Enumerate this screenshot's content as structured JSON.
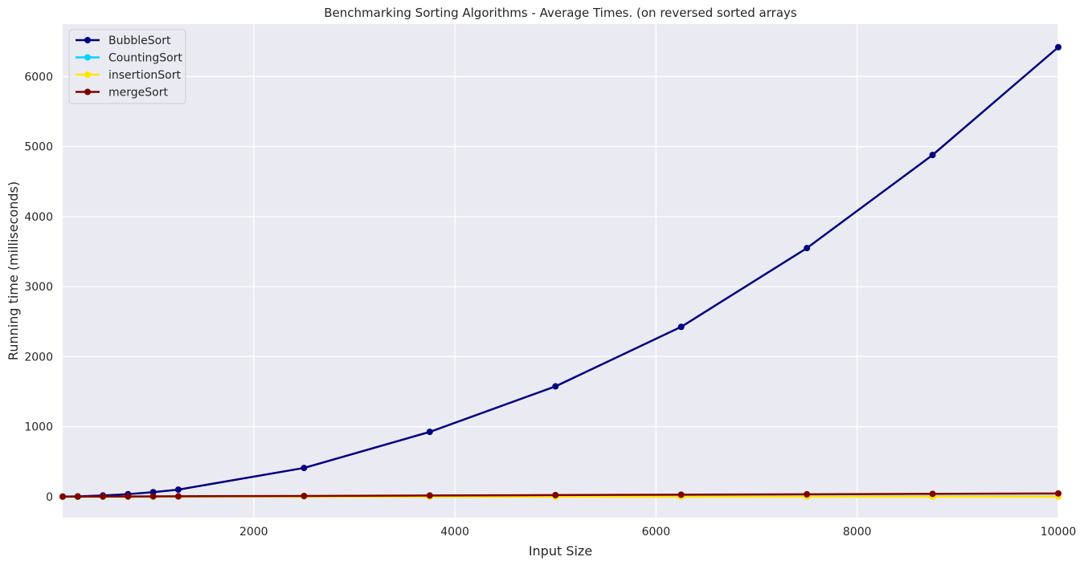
{
  "chart_data": {
    "type": "line",
    "title": "Benchmarking Sorting Algorithms - Average Times. (on reversed sorted arrays",
    "xlabel": "Input Size",
    "ylabel": "Running time (milliseconds)",
    "xlim": [
      100,
      10000
    ],
    "ylim": [
      -300,
      6750
    ],
    "xticks": [
      2000,
      4000,
      6000,
      8000,
      10000
    ],
    "yticks": [
      0,
      1000,
      2000,
      3000,
      4000,
      5000,
      6000
    ],
    "grid": true,
    "legend_position": "top-left",
    "x": [
      100,
      250,
      500,
      750,
      1000,
      1250,
      2500,
      3750,
      5000,
      6250,
      7500,
      8750,
      10000
    ],
    "series": [
      {
        "name": "BubbleSort",
        "color": "#000080",
        "values": [
          1,
          4,
          16,
          36,
          64,
          100,
          410,
          925,
          1575,
          2425,
          3550,
          4880,
          6420
        ]
      },
      {
        "name": "CountingSort",
        "color": "#00d4ff",
        "values": [
          0,
          0,
          0,
          0,
          0,
          0,
          0.5,
          1,
          1,
          1.5,
          2,
          2,
          2.5
        ]
      },
      {
        "name": "insertionSort",
        "color": "#ffe500",
        "values": [
          0,
          0,
          0,
          0,
          0,
          0,
          0,
          0,
          0,
          0,
          0,
          0,
          0
        ]
      },
      {
        "name": "mergeSort",
        "color": "#800000",
        "values": [
          1,
          1,
          2,
          3,
          4,
          5,
          10,
          16,
          22,
          28,
          34,
          40,
          46
        ]
      }
    ]
  }
}
